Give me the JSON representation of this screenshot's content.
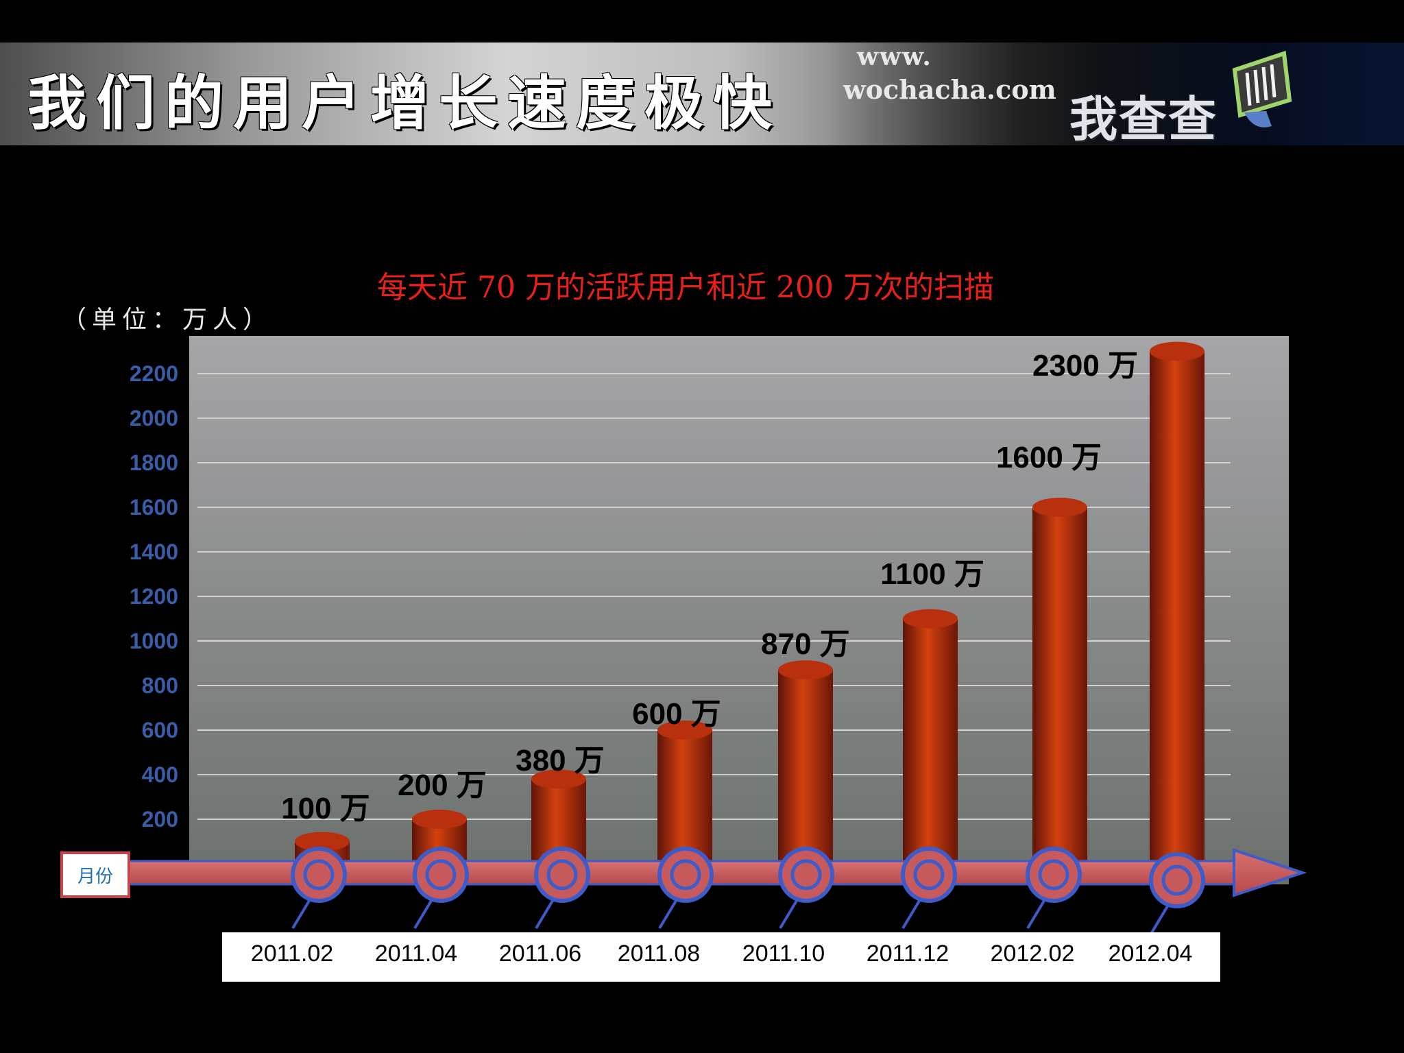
{
  "header": {
    "title": "我们的用户增长速度极快",
    "brand_www": "www.",
    "brand_url": "wochacha.com",
    "brand_name": "我查查"
  },
  "chart_data": {
    "type": "bar",
    "title": "每天近 70 万的活跃用户和近 200 万次的扫描",
    "ylabel": "（单位：万人）",
    "xlabel": "月份",
    "categories": [
      "2011.02",
      "2011.04",
      "2011.06",
      "2011.08",
      "2011.10",
      "2011.12",
      "2012.02",
      "2012.04"
    ],
    "series": [
      {
        "values": [
          100,
          200,
          380,
          600,
          870,
          1100,
          1600,
          2300
        ],
        "labels": [
          "100 万",
          "200 万",
          "380 万",
          "600 万",
          "870 万",
          "1100 万",
          "1600 万",
          "2300 万"
        ]
      }
    ],
    "yticks": [
      "200",
      "400",
      "600",
      "800",
      "1000",
      "1200",
      "1400",
      "1600",
      "1800",
      "2000",
      "2200"
    ],
    "ylim": [
      0,
      2400
    ],
    "grid": true,
    "colors": {
      "bar": "#c43a14",
      "axis": "#c75a5d",
      "marker_ring": "#3e5cc9",
      "tick_text": "#3a5da8",
      "title": "#e8201c"
    }
  }
}
